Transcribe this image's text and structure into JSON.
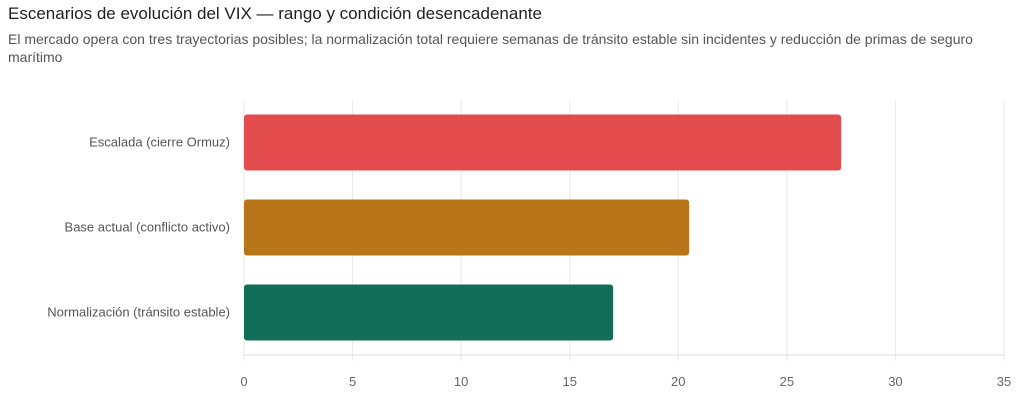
{
  "chart_data": {
    "type": "bar",
    "orientation": "horizontal",
    "title": "Escenarios de evolución del VIX — rango y condición desencadenante",
    "subtitle": "El mercado opera con tres trayectorias posibles; la normalización total requiere semanas de tránsito estable sin incidentes y reducción de primas de seguro marítimo",
    "categories": [
      "Escalada (cierre Ormuz)",
      "Base actual (conflicto activo)",
      "Normalización (tránsito estable)"
    ],
    "values": [
      27.5,
      20.5,
      17
    ],
    "colors": [
      "#e24c4c",
      "#b8751a",
      "#126e57"
    ],
    "xlim": [
      0,
      35
    ],
    "xticks": [
      0,
      5,
      10,
      15,
      20,
      25,
      30,
      35
    ],
    "xlabel": "",
    "ylabel": "",
    "grid": true
  }
}
